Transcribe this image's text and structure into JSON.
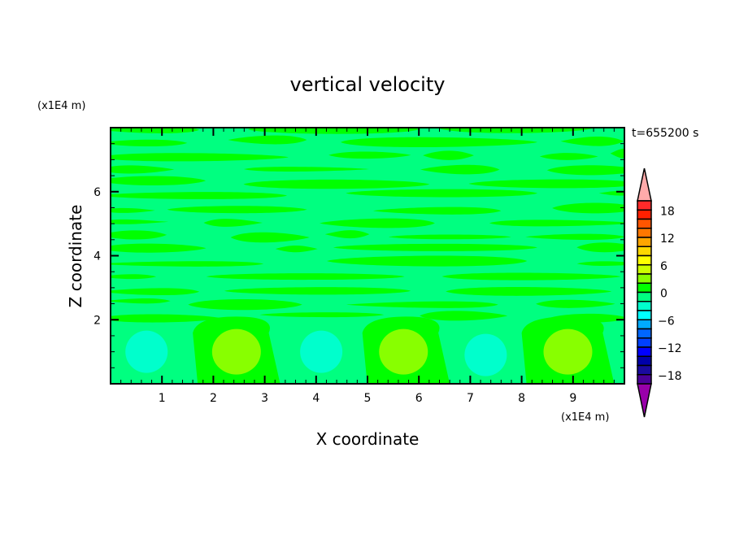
{
  "chart_data": {
    "type": "heatmap",
    "title": "vertical velocity",
    "xlabel": "X coordinate",
    "ylabel": "Z coordinate",
    "x_unit": "(x1E4 m)",
    "y_unit": "(x1E4 m)",
    "time_label": "t=655200 s",
    "xlim": [
      0,
      10
    ],
    "ylim": [
      0,
      8
    ],
    "x_ticks": [
      1,
      2,
      3,
      4,
      5,
      6,
      7,
      8,
      9
    ],
    "y_ticks": [
      2,
      4,
      6
    ],
    "colorbar": {
      "levels": [
        -20,
        -18,
        -16,
        -14,
        -12,
        -10,
        -8,
        -6,
        -4,
        -2,
        0,
        2,
        4,
        6,
        8,
        10,
        12,
        14,
        16,
        18,
        20
      ],
      "tick_labels": [
        "18",
        "12",
        "6",
        "0",
        "-6",
        "-12",
        "-18"
      ],
      "tick_values": [
        18,
        12,
        6,
        0,
        -6,
        -12,
        -18
      ],
      "colors_high_to_low": [
        "#ff2a2a",
        "#ff2000",
        "#ff5500",
        "#ff7700",
        "#ffa500",
        "#ffd700",
        "#ffff00",
        "#ccff00",
        "#88ff00",
        "#00ff00",
        "#00ff80",
        "#00ffcc",
        "#00ffff",
        "#00aaff",
        "#0066ff",
        "#0040ff",
        "#0000ff",
        "#0000aa",
        "#1a0aa0",
        "#4b0099"
      ],
      "over_color": "#ffaaaa",
      "under_color": "#9900aa"
    },
    "background_value_range": [
      -2,
      0
    ],
    "updraft_regions": [
      {
        "x_range": [
          1.6,
          3.3
        ],
        "z_top": 2.1,
        "core_center": [
          2.45,
          1.0
        ],
        "core_value_range": [
          2,
          4
        ]
      },
      {
        "x_range": [
          4.9,
          6.6
        ],
        "z_top": 2.1,
        "core_center": [
          5.7,
          1.0
        ],
        "core_value_range": [
          2,
          4
        ]
      },
      {
        "x_range": [
          8.0,
          9.8
        ],
        "z_top": 2.1,
        "core_center": [
          8.9,
          1.0
        ],
        "core_value_range": [
          2,
          4
        ]
      }
    ],
    "downdraft_regions": [
      {
        "center": [
          0.7,
          1.0
        ],
        "value_range": [
          -4,
          -2
        ]
      },
      {
        "center": [
          4.1,
          1.0
        ],
        "value_range": [
          -4,
          -2
        ]
      },
      {
        "center": [
          7.3,
          0.9
        ],
        "value_range": [
          -4,
          -2
        ]
      }
    ],
    "upper_layer": {
      "z_range": [
        2,
        8
      ],
      "pattern_value_ranges": [
        [
          -2,
          0
        ],
        [
          0,
          2
        ]
      ]
    }
  }
}
